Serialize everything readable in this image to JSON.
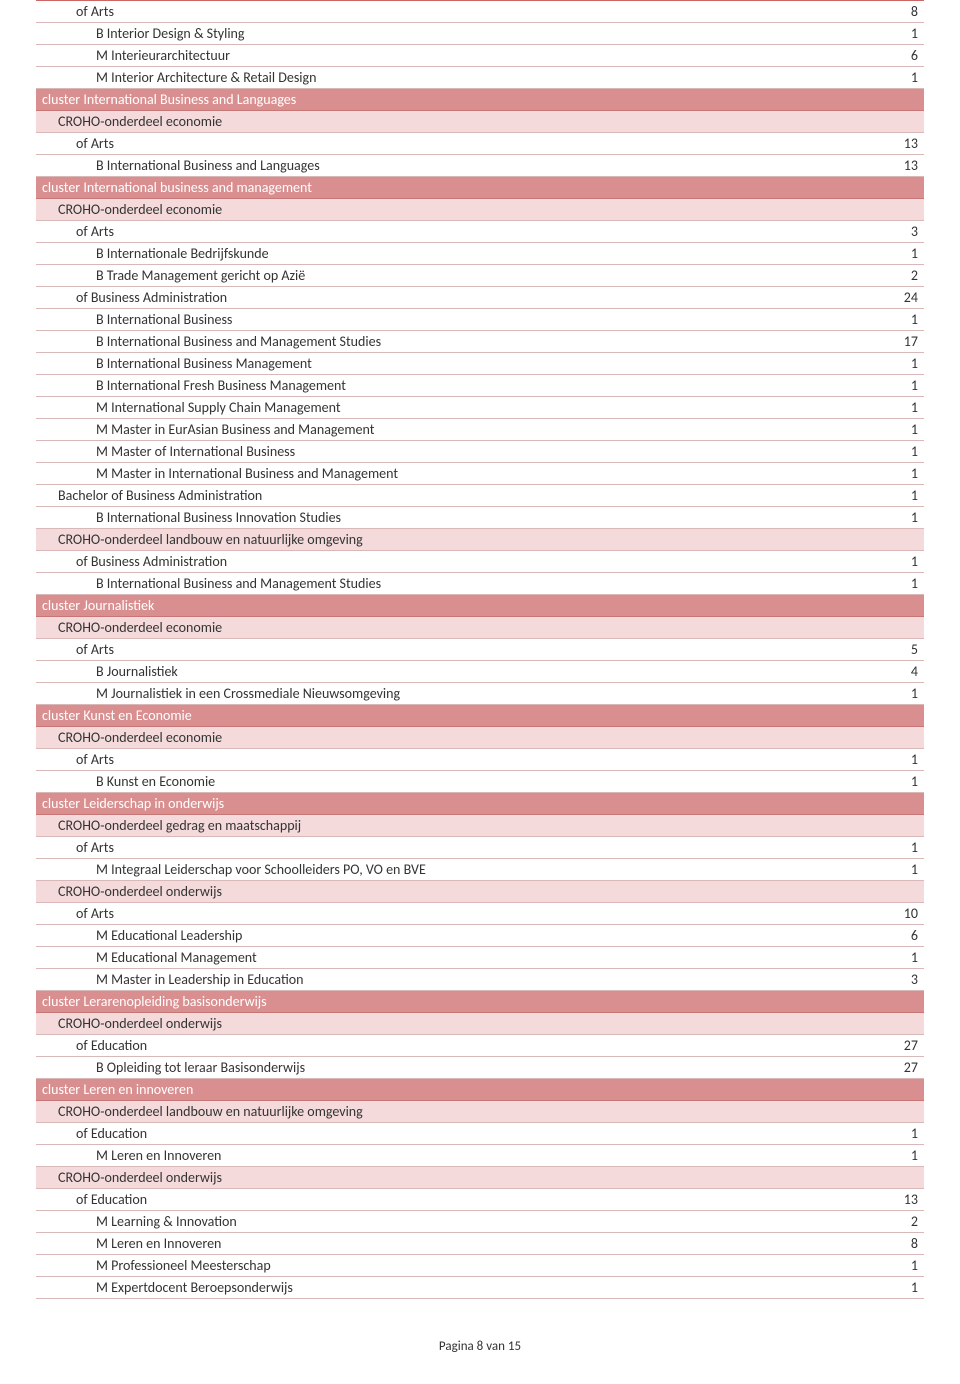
{
  "rows": [
    {
      "type": "degree",
      "label": "of Arts",
      "value": "8",
      "first": true
    },
    {
      "type": "course",
      "label": "B Interior Design & Styling",
      "value": "1"
    },
    {
      "type": "course",
      "label": "M Interieurarchitectuur",
      "value": "6"
    },
    {
      "type": "course",
      "label": "M Interior Architecture & Retail Design",
      "value": "1"
    },
    {
      "type": "cluster",
      "label": "cluster International Business and Languages",
      "value": ""
    },
    {
      "type": "croho",
      "label": "CROHO-onderdeel economie",
      "value": ""
    },
    {
      "type": "degree",
      "label": "of Arts",
      "value": "13"
    },
    {
      "type": "course",
      "label": "B International Business and Languages",
      "value": "13"
    },
    {
      "type": "cluster",
      "label": "cluster International business and management",
      "value": ""
    },
    {
      "type": "croho",
      "label": "CROHO-onderdeel economie",
      "value": ""
    },
    {
      "type": "degree",
      "label": "of Arts",
      "value": "3"
    },
    {
      "type": "course",
      "label": "B Internationale Bedrijfskunde",
      "value": "1"
    },
    {
      "type": "course",
      "label": "B Trade Management gericht op Azië",
      "value": "2"
    },
    {
      "type": "degree",
      "label": "of Business Administration",
      "value": "24"
    },
    {
      "type": "course",
      "label": "B International Business",
      "value": "1"
    },
    {
      "type": "course",
      "label": "B International Business and Management Studies",
      "value": "17"
    },
    {
      "type": "course",
      "label": "B International Business Management",
      "value": "1"
    },
    {
      "type": "course",
      "label": "B International Fresh Business Management",
      "value": "1"
    },
    {
      "type": "course",
      "label": "M International Supply Chain Management",
      "value": "1"
    },
    {
      "type": "course",
      "label": "M Master in EurAsian Business and Management",
      "value": "1"
    },
    {
      "type": "course",
      "label": "M Master of International Business",
      "value": "1"
    },
    {
      "type": "course",
      "label": "M Master in International Business and Management",
      "value": "1"
    },
    {
      "type": "bachelor",
      "label": "Bachelor of Business Administration",
      "value": "1"
    },
    {
      "type": "course",
      "label": "B International Business Innovation Studies",
      "value": "1"
    },
    {
      "type": "croho",
      "label": "CROHO-onderdeel landbouw en natuurlijke omgeving",
      "value": ""
    },
    {
      "type": "degree",
      "label": "of Business Administration",
      "value": "1"
    },
    {
      "type": "course",
      "label": "B International Business and Management Studies",
      "value": "1"
    },
    {
      "type": "cluster",
      "label": "cluster Journalistiek",
      "value": ""
    },
    {
      "type": "croho",
      "label": "CROHO-onderdeel economie",
      "value": ""
    },
    {
      "type": "degree",
      "label": "of Arts",
      "value": "5"
    },
    {
      "type": "course",
      "label": "B Journalistiek",
      "value": "4"
    },
    {
      "type": "course",
      "label": "M Journalistiek in een Crossmediale Nieuwsomgeving",
      "value": "1"
    },
    {
      "type": "cluster",
      "label": "cluster Kunst en Economie",
      "value": ""
    },
    {
      "type": "croho",
      "label": "CROHO-onderdeel economie",
      "value": ""
    },
    {
      "type": "degree",
      "label": "of Arts",
      "value": "1"
    },
    {
      "type": "course",
      "label": "B Kunst en Economie",
      "value": "1"
    },
    {
      "type": "cluster",
      "label": "cluster Leiderschap in onderwijs",
      "value": ""
    },
    {
      "type": "croho",
      "label": "CROHO-onderdeel gedrag en maatschappij",
      "value": ""
    },
    {
      "type": "degree",
      "label": "of Arts",
      "value": "1"
    },
    {
      "type": "course",
      "label": "M Integraal Leiderschap voor Schoolleiders PO, VO en BVE",
      "value": "1"
    },
    {
      "type": "croho",
      "label": "CROHO-onderdeel onderwijs",
      "value": ""
    },
    {
      "type": "degree",
      "label": "of Arts",
      "value": "10"
    },
    {
      "type": "course",
      "label": "M Educational Leadership",
      "value": "6"
    },
    {
      "type": "course",
      "label": "M Educational Management",
      "value": "1"
    },
    {
      "type": "course",
      "label": "M Master in Leadership in Education",
      "value": "3"
    },
    {
      "type": "cluster",
      "label": "cluster Lerarenopleiding basisonderwijs",
      "value": ""
    },
    {
      "type": "croho",
      "label": "CROHO-onderdeel onderwijs",
      "value": ""
    },
    {
      "type": "degree",
      "label": "of Education",
      "value": "27"
    },
    {
      "type": "course",
      "label": "B Opleiding tot leraar Basisonderwijs",
      "value": "27"
    },
    {
      "type": "cluster",
      "label": "cluster Leren en innoveren",
      "value": ""
    },
    {
      "type": "croho",
      "label": "CROHO-onderdeel landbouw en natuurlijke omgeving",
      "value": ""
    },
    {
      "type": "degree",
      "label": "of Education",
      "value": "1"
    },
    {
      "type": "course",
      "label": "M Leren en Innoveren",
      "value": "1"
    },
    {
      "type": "croho",
      "label": "CROHO-onderdeel onderwijs",
      "value": ""
    },
    {
      "type": "degree",
      "label": "of Education",
      "value": "13"
    },
    {
      "type": "course",
      "label": "M Learning & Innovation",
      "value": "2"
    },
    {
      "type": "course",
      "label": "M Leren en Innoveren",
      "value": "8"
    },
    {
      "type": "course",
      "label": "M Professioneel Meesterschap",
      "value": "1"
    },
    {
      "type": "course",
      "label": "M Expertdocent Beroepsonderwijs",
      "value": "1"
    }
  ],
  "footer": "Pagina 8 van 15"
}
